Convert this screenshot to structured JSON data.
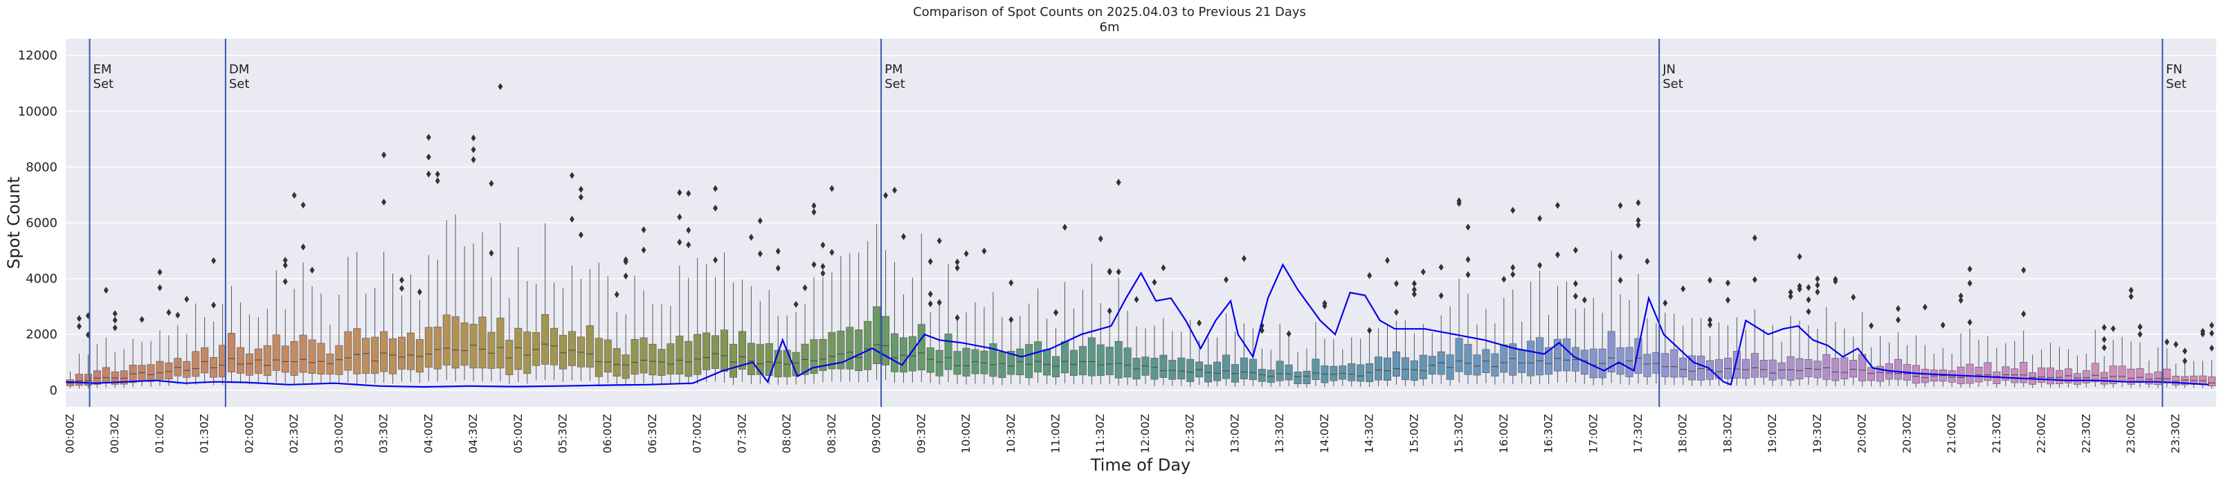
{
  "chart_data": {
    "type": "box",
    "title": "Comparison of Spot Counts on 2025.04.03 to Previous 21 Days",
    "subtitle": "6m",
    "xlabel": "Time of Day",
    "ylabel": "Spot Count",
    "ylim": [
      -600,
      12600
    ],
    "yticks": [
      0,
      2000,
      4000,
      6000,
      8000,
      10000,
      12000
    ],
    "xtick_labels": [
      "00:00Z",
      "00:30Z",
      "01:00Z",
      "01:30Z",
      "02:00Z",
      "02:30Z",
      "03:00Z",
      "03:30Z",
      "04:00Z",
      "04:30Z",
      "05:00Z",
      "05:30Z",
      "06:00Z",
      "06:30Z",
      "07:00Z",
      "07:30Z",
      "08:00Z",
      "08:30Z",
      "09:00Z",
      "09:30Z",
      "10:00Z",
      "10:30Z",
      "11:00Z",
      "11:30Z",
      "12:00Z",
      "12:30Z",
      "13:00Z",
      "13:30Z",
      "14:00Z",
      "14:30Z",
      "15:00Z",
      "15:30Z",
      "16:00Z",
      "16:30Z",
      "17:00Z",
      "17:30Z",
      "18:00Z",
      "18:30Z",
      "19:00Z",
      "19:30Z",
      "20:00Z",
      "20:30Z",
      "21:00Z",
      "21:30Z",
      "22:00Z",
      "22:30Z",
      "23:00Z",
      "23:30Z"
    ],
    "vertical_markers": [
      {
        "label_line1": "EM",
        "label_line2": "Set",
        "time": "00:16Z"
      },
      {
        "label_line1": "DM",
        "label_line2": "Set",
        "time": "01:47Z"
      },
      {
        "label_line1": "PM",
        "label_line2": "Set",
        "time": "09:06Z"
      },
      {
        "label_line1": "JN",
        "label_line2": "Set",
        "time": "17:47Z"
      },
      {
        "label_line1": "FN",
        "label_line2": "Set",
        "time": "23:24Z"
      }
    ],
    "median_profile": [
      [
        0,
        280
      ],
      [
        30,
        450
      ],
      [
        60,
        600
      ],
      [
        90,
        900
      ],
      [
        120,
        1050
      ],
      [
        150,
        950
      ],
      [
        180,
        1000
      ],
      [
        210,
        1250
      ],
      [
        240,
        1400
      ],
      [
        270,
        1500
      ],
      [
        300,
        1350
      ],
      [
        330,
        1500
      ],
      [
        360,
        1100
      ],
      [
        390,
        1000
      ],
      [
        420,
        1200
      ],
      [
        450,
        1100
      ],
      [
        480,
        950
      ],
      [
        510,
        1050
      ],
      [
        540,
        1500
      ],
      [
        570,
        1200
      ],
      [
        600,
        1000
      ],
      [
        630,
        900
      ],
      [
        660,
        1000
      ],
      [
        690,
        900
      ],
      [
        720,
        800
      ],
      [
        750,
        750
      ],
      [
        780,
        650
      ],
      [
        810,
        550
      ],
      [
        840,
        550
      ],
      [
        870,
        600
      ],
      [
        900,
        750
      ],
      [
        930,
        950
      ],
      [
        960,
        1000
      ],
      [
        990,
        1000
      ],
      [
        1020,
        1050
      ],
      [
        1050,
        1050
      ],
      [
        1080,
        850
      ],
      [
        1110,
        700
      ],
      [
        1140,
        700
      ],
      [
        1170,
        750
      ],
      [
        1200,
        650
      ],
      [
        1230,
        550
      ],
      [
        1260,
        500
      ],
      [
        1290,
        500
      ],
      [
        1320,
        500
      ],
      [
        1350,
        500
      ],
      [
        1380,
        480
      ],
      [
        1410,
        350
      ],
      [
        1435,
        300
      ]
    ],
    "current_day_profile": [
      [
        0,
        300
      ],
      [
        20,
        250
      ],
      [
        40,
        300
      ],
      [
        60,
        350
      ],
      [
        80,
        250
      ],
      [
        100,
        300
      ],
      [
        120,
        280
      ],
      [
        150,
        200
      ],
      [
        180,
        250
      ],
      [
        210,
        150
      ],
      [
        240,
        120
      ],
      [
        270,
        150
      ],
      [
        300,
        130
      ],
      [
        330,
        150
      ],
      [
        360,
        180
      ],
      [
        390,
        200
      ],
      [
        420,
        250
      ],
      [
        440,
        700
      ],
      [
        460,
        1000
      ],
      [
        470,
        300
      ],
      [
        480,
        1800
      ],
      [
        490,
        500
      ],
      [
        500,
        800
      ],
      [
        520,
        1000
      ],
      [
        540,
        1500
      ],
      [
        560,
        900
      ],
      [
        575,
        2000
      ],
      [
        585,
        1800
      ],
      [
        600,
        1700
      ],
      [
        620,
        1500
      ],
      [
        640,
        1200
      ],
      [
        660,
        1500
      ],
      [
        680,
        2000
      ],
      [
        700,
        2300
      ],
      [
        710,
        3300
      ],
      [
        720,
        4200
      ],
      [
        730,
        3200
      ],
      [
        740,
        3300
      ],
      [
        750,
        2500
      ],
      [
        760,
        1500
      ],
      [
        770,
        2500
      ],
      [
        780,
        3200
      ],
      [
        785,
        2000
      ],
      [
        795,
        1200
      ],
      [
        805,
        3300
      ],
      [
        815,
        4500
      ],
      [
        825,
        3600
      ],
      [
        840,
        2500
      ],
      [
        850,
        2000
      ],
      [
        860,
        3500
      ],
      [
        870,
        3400
      ],
      [
        880,
        2500
      ],
      [
        890,
        2200
      ],
      [
        910,
        2200
      ],
      [
        930,
        2000
      ],
      [
        950,
        1800
      ],
      [
        970,
        1500
      ],
      [
        990,
        1300
      ],
      [
        1000,
        1700
      ],
      [
        1010,
        1200
      ],
      [
        1020,
        950
      ],
      [
        1030,
        700
      ],
      [
        1040,
        1000
      ],
      [
        1050,
        700
      ],
      [
        1060,
        3300
      ],
      [
        1070,
        2000
      ],
      [
        1080,
        1500
      ],
      [
        1090,
        1000
      ],
      [
        1100,
        800
      ],
      [
        1110,
        300
      ],
      [
        1115,
        200
      ],
      [
        1125,
        2500
      ],
      [
        1140,
        2000
      ],
      [
        1150,
        2200
      ],
      [
        1160,
        2300
      ],
      [
        1170,
        1800
      ],
      [
        1180,
        1600
      ],
      [
        1190,
        1200
      ],
      [
        1200,
        1500
      ],
      [
        1210,
        800
      ],
      [
        1220,
        700
      ],
      [
        1240,
        600
      ],
      [
        1260,
        550
      ],
      [
        1280,
        500
      ],
      [
        1300,
        450
      ],
      [
        1320,
        400
      ],
      [
        1340,
        350
      ],
      [
        1360,
        350
      ],
      [
        1380,
        300
      ],
      [
        1400,
        300
      ],
      [
        1420,
        250
      ],
      [
        1435,
        200
      ]
    ],
    "line_color": "#0000ee",
    "marker_color": "#3355aa",
    "background_color": "#eaeaf2"
  }
}
